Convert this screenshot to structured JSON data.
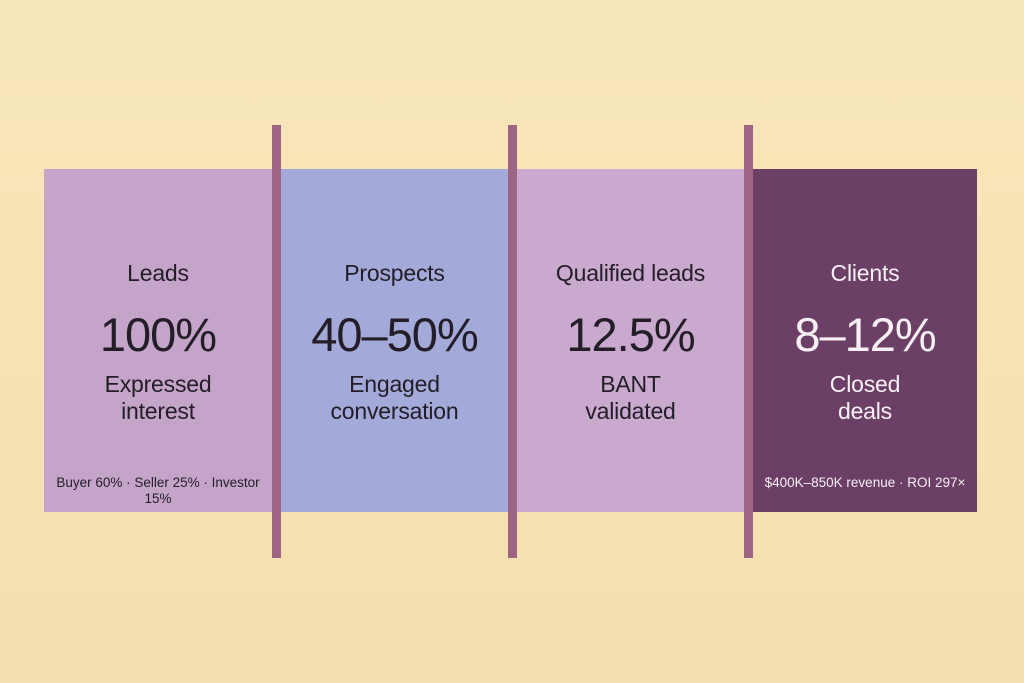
{
  "background_color": "#F6E3B4",
  "divider_color": "#9D6484",
  "chart_data": {
    "type": "funnel",
    "title": "",
    "legend": [],
    "stages": [
      {
        "label": "Leads",
        "value": "100%",
        "value_numeric": 100,
        "description": "Expressed\ninterest",
        "note": "Buyer 60% · Seller 25% · Investor 15%",
        "color": "#C5A4C9",
        "text_color": "#231D27"
      },
      {
        "label": "Prospects",
        "value": "40–50%",
        "value_numeric_range": [
          40,
          50
        ],
        "description": "Engaged\nconversation",
        "note": "",
        "color": "#A3A9D8",
        "text_color": "#231D27"
      },
      {
        "label": "Qualified leads",
        "value": "12.5%",
        "value_numeric": 12.5,
        "description": "BANT\nvalidated",
        "note": "",
        "color": "#C9A9CE",
        "text_color": "#231D27"
      },
      {
        "label": "Clients",
        "value": "8–12%",
        "value_numeric_range": [
          8,
          12
        ],
        "description": "Closed\ndeals",
        "note": "$400K–850K revenue · ROI 297×",
        "color": "#6C4066",
        "text_color": "#F7F0F4"
      }
    ]
  }
}
